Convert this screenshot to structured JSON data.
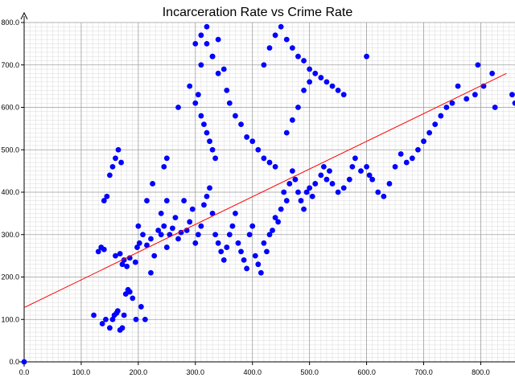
{
  "chart_data": {
    "type": "scatter",
    "title": "Incarceration Rate vs Crime Rate",
    "xlabel": "",
    "ylabel": "",
    "xlim": [
      0,
      860
    ],
    "ylim": [
      0,
      800
    ],
    "x_ticks": [
      0,
      100,
      200,
      300,
      400,
      500,
      600,
      700,
      800
    ],
    "x_tick_labels": [
      "0.0",
      "100.0",
      "200.0",
      "300.0",
      "400.0",
      "500.0",
      "600.0",
      "700.0",
      "800.0"
    ],
    "y_ticks": [
      0,
      100,
      200,
      300,
      400,
      500,
      600,
      700,
      800
    ],
    "y_tick_labels": [
      "0.0",
      "100.0",
      "200.0",
      "300.0",
      "400.0",
      "500.0",
      "600.0",
      "700.0",
      "800.0"
    ],
    "grid": true,
    "legend": "none",
    "point_color": "#0000ff",
    "line_color": "#ff0000",
    "trend_line": {
      "x": [
        0,
        845
      ],
      "y": [
        128,
        680
      ]
    },
    "series": [
      {
        "x": [
          0,
          122,
          137,
          143,
          150,
          155,
          158,
          162,
          164,
          168,
          172,
          175,
          178,
          182,
          185,
          190,
          196,
          205,
          212,
          222,
          130,
          135,
          140,
          160,
          168,
          172,
          175,
          180,
          185,
          195,
          198,
          202,
          208,
          215,
          222,
          228,
          235,
          240,
          245,
          250,
          250,
          255,
          260,
          265,
          270,
          275,
          280,
          285,
          290,
          295,
          300,
          305,
          310,
          315,
          320,
          325,
          330,
          335,
          340,
          345,
          350,
          355,
          360,
          365,
          370,
          375,
          380,
          385,
          390,
          395,
          400,
          405,
          410,
          415,
          420,
          425,
          430,
          435,
          440,
          445,
          450,
          455,
          460,
          465,
          470,
          475,
          480,
          485,
          490,
          495,
          500,
          505,
          510,
          520,
          525,
          530,
          535,
          540,
          550,
          560,
          570,
          575,
          580,
          590,
          600,
          605,
          610,
          620,
          630,
          640,
          650,
          660,
          670,
          680,
          690,
          700,
          710,
          720,
          730,
          740,
          750,
          760,
          775,
          790,
          795,
          805,
          820,
          825,
          855,
          860,
          140,
          145,
          150,
          155,
          160,
          165,
          170,
          200,
          215,
          225,
          240,
          245,
          250,
          270,
          290,
          310,
          320,
          330,
          340,
          350,
          355,
          360,
          370,
          380,
          390,
          400,
          410,
          420,
          430,
          440,
          460,
          470,
          480,
          490,
          500,
          300,
          305,
          310,
          315,
          320,
          325,
          330,
          335,
          300,
          310,
          320,
          330,
          340,
          420,
          430,
          440,
          450,
          460,
          470,
          480,
          490,
          500,
          510,
          520,
          530,
          540,
          550,
          560,
          600
        ],
        "y": [
          0,
          110,
          90,
          100,
          80,
          100,
          110,
          115,
          120,
          75,
          80,
          110,
          160,
          170,
          165,
          150,
          100,
          130,
          100,
          210,
          260,
          270,
          265,
          250,
          255,
          230,
          240,
          225,
          245,
          235,
          270,
          280,
          300,
          275,
          290,
          250,
          310,
          300,
          320,
          270,
          380,
          300,
          315,
          340,
          290,
          305,
          380,
          310,
          330,
          360,
          280,
          300,
          320,
          370,
          390,
          410,
          350,
          300,
          280,
          260,
          240,
          270,
          300,
          320,
          350,
          280,
          260,
          240,
          220,
          300,
          320,
          250,
          230,
          210,
          280,
          260,
          300,
          310,
          340,
          330,
          360,
          400,
          380,
          420,
          450,
          430,
          400,
          380,
          360,
          400,
          410,
          390,
          420,
          440,
          460,
          430,
          450,
          420,
          400,
          410,
          430,
          460,
          480,
          450,
          460,
          440,
          430,
          400,
          390,
          420,
          460,
          490,
          470,
          480,
          500,
          520,
          540,
          560,
          580,
          600,
          610,
          650,
          620,
          630,
          700,
          650,
          680,
          600,
          630,
          610,
          380,
          390,
          440,
          460,
          480,
          500,
          470,
          320,
          380,
          420,
          350,
          460,
          480,
          600,
          650,
          700,
          750,
          720,
          760,
          690,
          640,
          610,
          580,
          560,
          530,
          520,
          500,
          480,
          470,
          460,
          540,
          570,
          600,
          640,
          660,
          610,
          630,
          580,
          560,
          540,
          520,
          500,
          480,
          750,
          770,
          790,
          720,
          680,
          700,
          740,
          770,
          790,
          760,
          740,
          720,
          710,
          690,
          680,
          670,
          660,
          650,
          640,
          630,
          720
        ]
      }
    ]
  }
}
